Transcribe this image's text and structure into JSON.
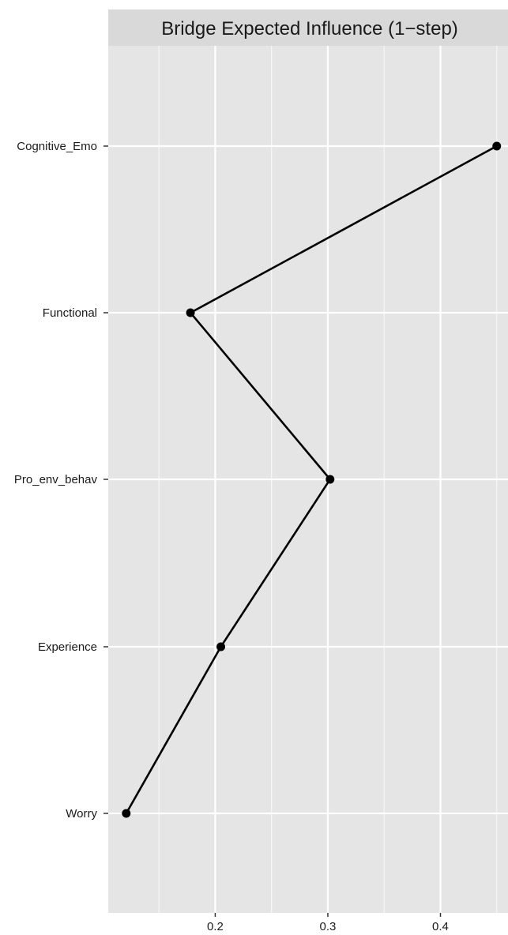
{
  "chart_data": {
    "type": "line",
    "title": "Bridge Expected Influence (1−step)",
    "xlabel": "",
    "ylabel": "",
    "orientation": "horizontal",
    "xlim": [
      0.105,
      0.46
    ],
    "xticks": [
      0.2,
      0.3,
      0.4
    ],
    "xtick_labels": [
      "0.2",
      "0.3",
      "0.4"
    ],
    "categories": [
      "Cognitive_Emo",
      "Functional",
      "Pro_env_behav",
      "Experience",
      "Worry"
    ],
    "values": [
      0.45,
      0.178,
      0.302,
      0.205,
      0.121
    ],
    "grid": true,
    "legend": "none",
    "colors": {
      "panel_background": "#e5e5e5",
      "strip_background": "#d9d9d9",
      "grid_major": "#ffffff",
      "line": "#000000",
      "point": "#000000",
      "axis_text": "#1a1a1a"
    }
  }
}
